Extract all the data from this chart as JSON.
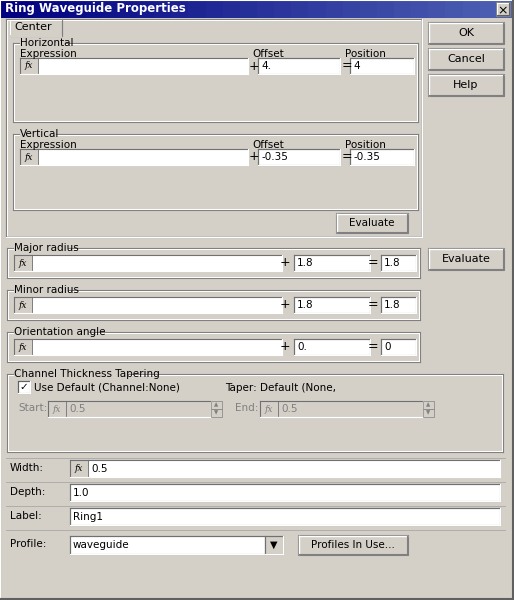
{
  "title": "Ring Waveguide Properties",
  "dialog_bg": "#d4d0c8",
  "title_bar_color_left": "#000080",
  "title_bar_color_right": "#6080c0",
  "title_text_color": "#ffffff",
  "tab_label": "Center",
  "ok_label": "OK",
  "cancel_label": "Cancel",
  "help_label": "Help",
  "evaluate_label": "Evaluate",
  "evaluate2_label": "Evaluate",
  "horizontal_label": "Horizontal",
  "vertical_label": "Vertical",
  "expression_label": "Expression",
  "offset_label": "Offset",
  "position_label": "Position",
  "h_offset": "4.",
  "h_position": "4",
  "v_offset": "-0.35",
  "v_position": "-0.35",
  "major_radius_label": "Major radius",
  "major_offset": "1.8",
  "major_position": "1.8",
  "minor_radius_label": "Minor radius",
  "minor_offset": "1.8",
  "minor_position": "1.8",
  "orientation_label": "Orientation angle",
  "orient_offset": "0.",
  "orient_position": "0",
  "channel_label": "Channel Thickness Tapering",
  "use_default_label": "Use Default (Channel:None)",
  "taper_label": "Taper: Default (None,",
  "start_label": "Start:",
  "end_label": "End:",
  "start_value": "0.5",
  "end_value": "0.5",
  "width_label": "Width:",
  "width_value": "0.5",
  "depth_label": "Depth:",
  "depth_value": "1.0",
  "label_label": "Label:",
  "label_value": "Ring1",
  "profile_label": "Profile:",
  "profile_value": "waveguide",
  "profiles_in_use_label": "Profiles In Use...",
  "field_bg": "#ffffff",
  "field_disabled_bg": "#d4d0c8",
  "button_bg": "#d4d0c8",
  "fx_text": "fx"
}
